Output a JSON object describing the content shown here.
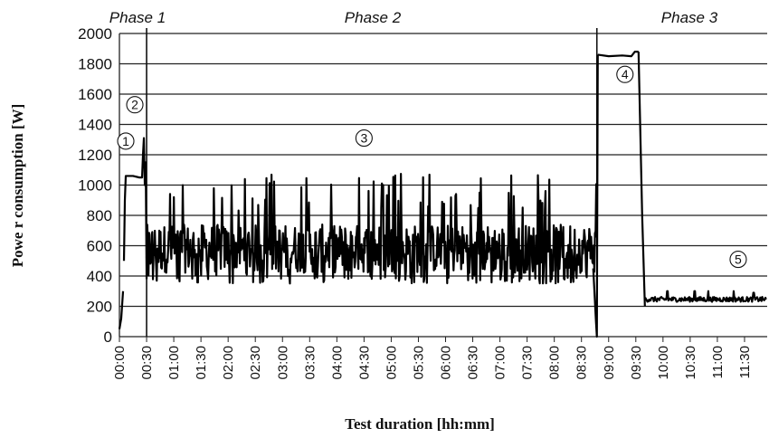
{
  "chart_data": {
    "type": "line",
    "xlabel": "Test duration [hh:mm]",
    "ylabel": "Powe r consumption [W]",
    "ylim": [
      0,
      2000
    ],
    "xlim_minutes": [
      0,
      715
    ],
    "y_ticks": [
      0,
      200,
      400,
      600,
      800,
      1000,
      1200,
      1400,
      1600,
      1800,
      2000
    ],
    "x_tick_labels": [
      "00:00",
      "00:30",
      "01:00",
      "01:30",
      "02:00",
      "02:30",
      "03:00",
      "03:30",
      "04:00",
      "04:30",
      "05:00",
      "05:30",
      "06:00",
      "06:30",
      "07:00",
      "07:30",
      "08:00",
      "08:30",
      "09:00",
      "09:30",
      "10:00",
      "10:30",
      "11:00",
      "11:30"
    ],
    "x_tick_minutes": [
      0,
      30,
      60,
      90,
      120,
      150,
      180,
      210,
      240,
      270,
      300,
      330,
      360,
      390,
      420,
      450,
      480,
      510,
      540,
      570,
      600,
      630,
      660,
      690
    ],
    "grid": "horizontal",
    "phases": [
      {
        "label": "Phase 1",
        "start_min": 0,
        "end_min": 30
      },
      {
        "label": "Phase 2",
        "start_min": 30,
        "end_min": 527
      },
      {
        "label": "Phase 3",
        "start_min": 527,
        "end_min": 715
      }
    ],
    "phase_boundaries_min": [
      30,
      527
    ],
    "annotations": [
      {
        "label": "①",
        "x_min": 7,
        "y": 1290
      },
      {
        "label": "②",
        "x_min": 17,
        "y": 1530
      },
      {
        "label": "③",
        "x_min": 270,
        "y": 1310
      },
      {
        "label": "④",
        "x_min": 558,
        "y": 1730
      },
      {
        "label": "⑤",
        "x_min": 683,
        "y": 510
      }
    ],
    "series": [
      {
        "color": "#000000",
        "segments": [
          {
            "x_start": 0,
            "x_end": 4,
            "points": [
              [
                0,
                50
              ],
              [
                2,
                120
              ],
              [
                4,
                300
              ]
            ]
          },
          {
            "x_start": 4,
            "x_end": 30,
            "points": [
              [
                5,
                500
              ],
              [
                6,
                900
              ],
              [
                7,
                1060
              ],
              [
                15,
                1060
              ],
              [
                22,
                1050
              ],
              [
                25,
                1050
              ],
              [
                26,
                1200
              ],
              [
                27,
                1310
              ],
              [
                28,
                1000
              ],
              [
                29,
                1150
              ],
              [
                30,
                380
              ]
            ]
          },
          {
            "x_start": 30,
            "x_end": 527,
            "noise": {
              "base": 580,
              "spread": 160,
              "min": 350,
              "max": 1080,
              "mean_range": [
                500,
                650
              ]
            }
          },
          {
            "x_start": 523,
            "x_end": 530,
            "points": [
              [
                523,
                450
              ],
              [
                526,
                100
              ],
              [
                527,
                0
              ],
              [
                528,
                1860
              ]
            ]
          },
          {
            "x_start": 528,
            "x_end": 574,
            "points": [
              [
                528,
                1860
              ],
              [
                540,
                1850
              ],
              [
                555,
                1855
              ],
              [
                565,
                1850
              ],
              [
                569,
                1880
              ],
              [
                573,
                1880
              ]
            ]
          },
          {
            "x_start": 573,
            "x_end": 580,
            "points": [
              [
                573,
                1880
              ],
              [
                577,
                800
              ],
              [
                580,
                200
              ]
            ]
          },
          {
            "x_start": 580,
            "x_end": 715,
            "noise": {
              "base": 250,
              "spread": 20,
              "min": 220,
              "max": 300
            },
            "spikes": [
              [
                605,
                300
              ],
              [
                635,
                390
              ],
              [
                650,
                320
              ],
              [
                678,
                390
              ],
              [
                700,
                290
              ]
            ]
          }
        ]
      }
    ]
  }
}
